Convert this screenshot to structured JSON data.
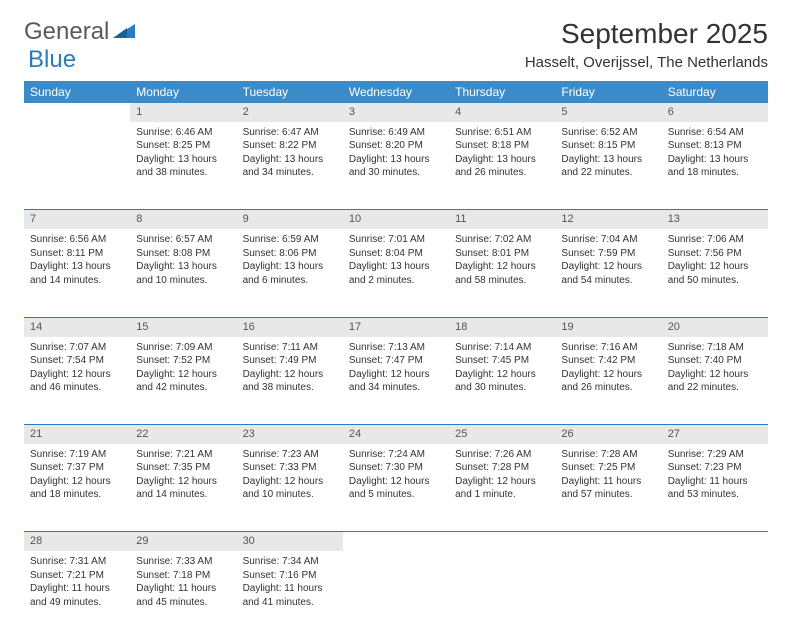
{
  "brand": {
    "word1": "General",
    "word2": "Blue",
    "color_gray": "#5a5a5a",
    "color_blue": "#2b7bbf"
  },
  "title": "September 2025",
  "location": "Hasselt, Overijssel, The Netherlands",
  "header_bg": "#3b8bc9",
  "header_fg": "#ffffff",
  "rule_color": "#2b7bbf",
  "daynum_bg": "#e8e8e8",
  "days": [
    "Sunday",
    "Monday",
    "Tuesday",
    "Wednesday",
    "Thursday",
    "Friday",
    "Saturday"
  ],
  "weeks": [
    {
      "nums": [
        "",
        "1",
        "2",
        "3",
        "4",
        "5",
        "6"
      ],
      "cells": [
        {
          "empty": true
        },
        {
          "sunrise": "Sunrise: 6:46 AM",
          "sunset": "Sunset: 8:25 PM",
          "day1": "Daylight: 13 hours",
          "day2": "and 38 minutes."
        },
        {
          "sunrise": "Sunrise: 6:47 AM",
          "sunset": "Sunset: 8:22 PM",
          "day1": "Daylight: 13 hours",
          "day2": "and 34 minutes."
        },
        {
          "sunrise": "Sunrise: 6:49 AM",
          "sunset": "Sunset: 8:20 PM",
          "day1": "Daylight: 13 hours",
          "day2": "and 30 minutes."
        },
        {
          "sunrise": "Sunrise: 6:51 AM",
          "sunset": "Sunset: 8:18 PM",
          "day1": "Daylight: 13 hours",
          "day2": "and 26 minutes."
        },
        {
          "sunrise": "Sunrise: 6:52 AM",
          "sunset": "Sunset: 8:15 PM",
          "day1": "Daylight: 13 hours",
          "day2": "and 22 minutes."
        },
        {
          "sunrise": "Sunrise: 6:54 AM",
          "sunset": "Sunset: 8:13 PM",
          "day1": "Daylight: 13 hours",
          "day2": "and 18 minutes."
        }
      ]
    },
    {
      "nums": [
        "7",
        "8",
        "9",
        "10",
        "11",
        "12",
        "13"
      ],
      "cells": [
        {
          "sunrise": "Sunrise: 6:56 AM",
          "sunset": "Sunset: 8:11 PM",
          "day1": "Daylight: 13 hours",
          "day2": "and 14 minutes."
        },
        {
          "sunrise": "Sunrise: 6:57 AM",
          "sunset": "Sunset: 8:08 PM",
          "day1": "Daylight: 13 hours",
          "day2": "and 10 minutes."
        },
        {
          "sunrise": "Sunrise: 6:59 AM",
          "sunset": "Sunset: 8:06 PM",
          "day1": "Daylight: 13 hours",
          "day2": "and 6 minutes."
        },
        {
          "sunrise": "Sunrise: 7:01 AM",
          "sunset": "Sunset: 8:04 PM",
          "day1": "Daylight: 13 hours",
          "day2": "and 2 minutes."
        },
        {
          "sunrise": "Sunrise: 7:02 AM",
          "sunset": "Sunset: 8:01 PM",
          "day1": "Daylight: 12 hours",
          "day2": "and 58 minutes."
        },
        {
          "sunrise": "Sunrise: 7:04 AM",
          "sunset": "Sunset: 7:59 PM",
          "day1": "Daylight: 12 hours",
          "day2": "and 54 minutes."
        },
        {
          "sunrise": "Sunrise: 7:06 AM",
          "sunset": "Sunset: 7:56 PM",
          "day1": "Daylight: 12 hours",
          "day2": "and 50 minutes."
        }
      ]
    },
    {
      "nums": [
        "14",
        "15",
        "16",
        "17",
        "18",
        "19",
        "20"
      ],
      "cells": [
        {
          "sunrise": "Sunrise: 7:07 AM",
          "sunset": "Sunset: 7:54 PM",
          "day1": "Daylight: 12 hours",
          "day2": "and 46 minutes."
        },
        {
          "sunrise": "Sunrise: 7:09 AM",
          "sunset": "Sunset: 7:52 PM",
          "day1": "Daylight: 12 hours",
          "day2": "and 42 minutes."
        },
        {
          "sunrise": "Sunrise: 7:11 AM",
          "sunset": "Sunset: 7:49 PM",
          "day1": "Daylight: 12 hours",
          "day2": "and 38 minutes."
        },
        {
          "sunrise": "Sunrise: 7:13 AM",
          "sunset": "Sunset: 7:47 PM",
          "day1": "Daylight: 12 hours",
          "day2": "and 34 minutes."
        },
        {
          "sunrise": "Sunrise: 7:14 AM",
          "sunset": "Sunset: 7:45 PM",
          "day1": "Daylight: 12 hours",
          "day2": "and 30 minutes."
        },
        {
          "sunrise": "Sunrise: 7:16 AM",
          "sunset": "Sunset: 7:42 PM",
          "day1": "Daylight: 12 hours",
          "day2": "and 26 minutes."
        },
        {
          "sunrise": "Sunrise: 7:18 AM",
          "sunset": "Sunset: 7:40 PM",
          "day1": "Daylight: 12 hours",
          "day2": "and 22 minutes."
        }
      ]
    },
    {
      "nums": [
        "21",
        "22",
        "23",
        "24",
        "25",
        "26",
        "27"
      ],
      "cells": [
        {
          "sunrise": "Sunrise: 7:19 AM",
          "sunset": "Sunset: 7:37 PM",
          "day1": "Daylight: 12 hours",
          "day2": "and 18 minutes."
        },
        {
          "sunrise": "Sunrise: 7:21 AM",
          "sunset": "Sunset: 7:35 PM",
          "day1": "Daylight: 12 hours",
          "day2": "and 14 minutes."
        },
        {
          "sunrise": "Sunrise: 7:23 AM",
          "sunset": "Sunset: 7:33 PM",
          "day1": "Daylight: 12 hours",
          "day2": "and 10 minutes."
        },
        {
          "sunrise": "Sunrise: 7:24 AM",
          "sunset": "Sunset: 7:30 PM",
          "day1": "Daylight: 12 hours",
          "day2": "and 5 minutes."
        },
        {
          "sunrise": "Sunrise: 7:26 AM",
          "sunset": "Sunset: 7:28 PM",
          "day1": "Daylight: 12 hours",
          "day2": "and 1 minute."
        },
        {
          "sunrise": "Sunrise: 7:28 AM",
          "sunset": "Sunset: 7:25 PM",
          "day1": "Daylight: 11 hours",
          "day2": "and 57 minutes."
        },
        {
          "sunrise": "Sunrise: 7:29 AM",
          "sunset": "Sunset: 7:23 PM",
          "day1": "Daylight: 11 hours",
          "day2": "and 53 minutes."
        }
      ]
    },
    {
      "nums": [
        "28",
        "29",
        "30",
        "",
        "",
        "",
        ""
      ],
      "cells": [
        {
          "sunrise": "Sunrise: 7:31 AM",
          "sunset": "Sunset: 7:21 PM",
          "day1": "Daylight: 11 hours",
          "day2": "and 49 minutes."
        },
        {
          "sunrise": "Sunrise: 7:33 AM",
          "sunset": "Sunset: 7:18 PM",
          "day1": "Daylight: 11 hours",
          "day2": "and 45 minutes."
        },
        {
          "sunrise": "Sunrise: 7:34 AM",
          "sunset": "Sunset: 7:16 PM",
          "day1": "Daylight: 11 hours",
          "day2": "and 41 minutes."
        },
        {
          "empty": true
        },
        {
          "empty": true
        },
        {
          "empty": true
        },
        {
          "empty": true
        }
      ]
    }
  ]
}
